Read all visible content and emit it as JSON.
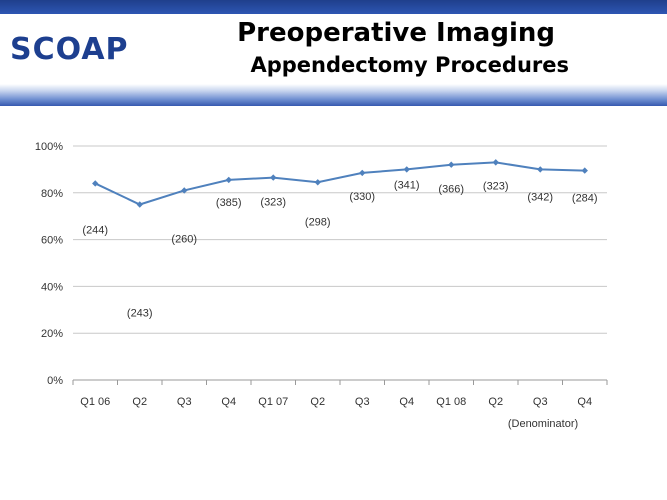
{
  "header": {
    "logo_text": "SCOAP",
    "title": "Preoperative Imaging",
    "subtitle": "Appendectomy Procedures",
    "band_color": "#2d56b3"
  },
  "chart_data": {
    "type": "line",
    "categories": [
      "Q1 06",
      "Q2",
      "Q3",
      "Q4",
      "Q1 07",
      "Q2",
      "Q3",
      "Q4",
      "Q1 08",
      "Q2",
      "Q3",
      "Q4"
    ],
    "series": [
      {
        "values": [
          84,
          75,
          81,
          85.5,
          86.5,
          84.5,
          88.5,
          90,
          92,
          93,
          90,
          89.5
        ],
        "color": "#4f81bd"
      }
    ],
    "denominators": [
      "(244)",
      "(243)",
      "(260)",
      "(385)",
      "(323)",
      "(298)",
      "(330)",
      "(341)",
      "(366)",
      "(323)",
      "(342)",
      "(284)"
    ],
    "annotation": "(Denominator)",
    "ylim": [
      0,
      100
    ],
    "yticks": [
      "0%",
      "20%",
      "40%",
      "60%",
      "80%",
      "100%"
    ],
    "ytick_values": [
      0,
      20,
      40,
      60,
      80,
      100
    ],
    "grid": true,
    "title": "",
    "xlabel": "",
    "ylabel": ""
  }
}
